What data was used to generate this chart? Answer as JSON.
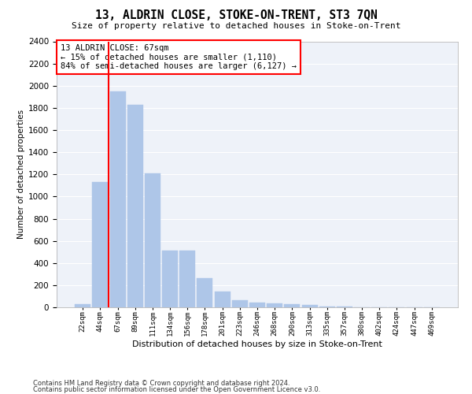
{
  "title": "13, ALDRIN CLOSE, STOKE-ON-TRENT, ST3 7QN",
  "subtitle": "Size of property relative to detached houses in Stoke-on-Trent",
  "xlabel": "Distribution of detached houses by size in Stoke-on-Trent",
  "ylabel": "Number of detached properties",
  "categories": [
    "22sqm",
    "44sqm",
    "67sqm",
    "89sqm",
    "111sqm",
    "134sqm",
    "156sqm",
    "178sqm",
    "201sqm",
    "223sqm",
    "246sqm",
    "268sqm",
    "290sqm",
    "313sqm",
    "335sqm",
    "357sqm",
    "380sqm",
    "402sqm",
    "424sqm",
    "447sqm",
    "469sqm"
  ],
  "values": [
    30,
    1130,
    1950,
    1830,
    1210,
    510,
    510,
    265,
    145,
    65,
    45,
    35,
    30,
    20,
    10,
    5,
    3,
    2,
    2,
    2,
    2
  ],
  "bar_color": "#aec6e8",
  "bar_edge_color": "#aec6e8",
  "vline_color": "red",
  "ylim": [
    0,
    2400
  ],
  "yticks": [
    0,
    200,
    400,
    600,
    800,
    1000,
    1200,
    1400,
    1600,
    1800,
    2000,
    2200,
    2400
  ],
  "annotation_text": "13 ALDRIN CLOSE: 67sqm\n← 15% of detached houses are smaller (1,110)\n84% of semi-detached houses are larger (6,127) →",
  "annotation_box_color": "white",
  "annotation_box_edge": "red",
  "footer1": "Contains HM Land Registry data © Crown copyright and database right 2024.",
  "footer2": "Contains public sector information licensed under the Open Government Licence v3.0.",
  "bg_color": "#eef2f9",
  "grid_color": "white",
  "vline_bar_index": 2
}
